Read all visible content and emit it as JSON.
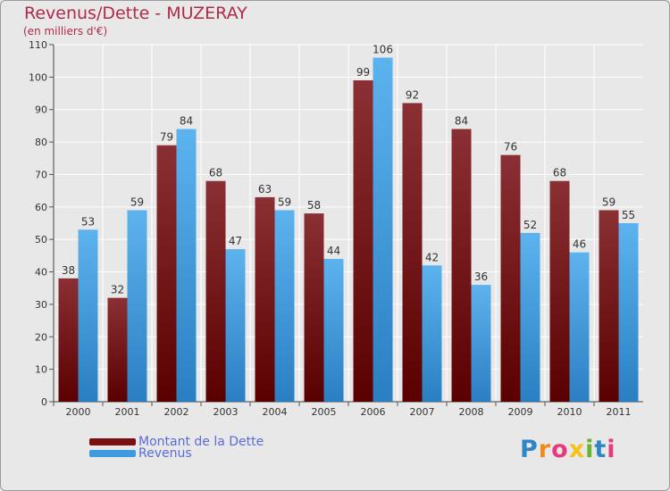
{
  "title": "Revenus/Dette - MUZERAY",
  "subtitle": "(en milliers d'€)",
  "legend": [
    {
      "label": "Montant de la Dette",
      "color": "#7a1010"
    },
    {
      "label": "Revenus",
      "color": "#3d9be0"
    }
  ],
  "logo": "Proxiti",
  "colors": {
    "dette_top": "#8a3034",
    "dette_bottom": "#5a0000",
    "revenus_top": "#5db3ee",
    "revenus_bottom": "#2a7fc2",
    "title": "#b02a4a",
    "legend_text": "#5a6ad6"
  },
  "chart_data": {
    "type": "bar",
    "categories": [
      "2000",
      "2001",
      "2002",
      "2003",
      "2004",
      "2005",
      "2006",
      "2007",
      "2008",
      "2009",
      "2010",
      "2011"
    ],
    "series": [
      {
        "name": "Montant de la Dette",
        "values": [
          38,
          32,
          79,
          68,
          63,
          58,
          99,
          92,
          84,
          76,
          68,
          59
        ]
      },
      {
        "name": "Revenus",
        "values": [
          53,
          59,
          84,
          47,
          59,
          44,
          106,
          42,
          36,
          52,
          46,
          55
        ]
      }
    ],
    "title": "Revenus/Dette - MUZERAY",
    "ylabel": "(en milliers d'€)",
    "ylim": [
      0,
      110
    ],
    "yticks": [
      0,
      10,
      20,
      30,
      40,
      50,
      60,
      70,
      80,
      90,
      100,
      110
    ],
    "grid": true,
    "legend_position": "bottom-left"
  }
}
